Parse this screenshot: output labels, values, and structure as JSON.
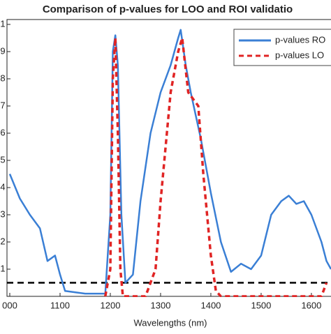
{
  "chart_data": {
    "type": "line",
    "title": "Comparison of p-values for LOO and ROI validatio",
    "xlabel": "Wavelengths (nm)",
    "xlim": [
      1000,
      1639
    ],
    "ylim": [
      0,
      1
    ],
    "xticks": [
      {
        "value": 1000,
        "label": "000"
      },
      1100,
      1200,
      1300,
      1400,
      1500,
      1600
    ],
    "yticks": [
      {
        "value": 0.1,
        "label": "1"
      },
      {
        "value": 0.2,
        "label": "2"
      },
      {
        "value": 0.3,
        "label": "3"
      },
      {
        "value": 0.4,
        "label": "4"
      },
      {
        "value": 0.5,
        "label": "5"
      },
      {
        "value": 0.6,
        "label": "6"
      },
      {
        "value": 0.7,
        "label": "7"
      },
      {
        "value": 0.8,
        "label": "8"
      },
      {
        "value": 0.9,
        "label": "9"
      },
      1
    ],
    "threshold": 0.05,
    "threshold_color": "#000000",
    "legend": "upper right",
    "series": [
      {
        "name": "p-values RO",
        "color": "#3a7fd5",
        "dashed": false,
        "x": [
          1000,
          1020,
          1040,
          1060,
          1075,
          1090,
          1100,
          1110,
          1150,
          1190,
          1200,
          1205,
          1210,
          1215,
          1222,
          1230,
          1245,
          1260,
          1280,
          1300,
          1320,
          1335,
          1340,
          1350,
          1360,
          1380,
          1400,
          1420,
          1440,
          1460,
          1480,
          1500,
          1520,
          1540,
          1555,
          1570,
          1585,
          1600,
          1620,
          1630,
          1639
        ],
        "values": [
          0.45,
          0.36,
          0.3,
          0.25,
          0.13,
          0.15,
          0.08,
          0.02,
          0.01,
          0.01,
          0.3,
          0.9,
          0.96,
          0.85,
          0.3,
          0.05,
          0.08,
          0.35,
          0.6,
          0.75,
          0.85,
          0.95,
          0.98,
          0.85,
          0.75,
          0.58,
          0.38,
          0.2,
          0.09,
          0.12,
          0.1,
          0.15,
          0.3,
          0.35,
          0.37,
          0.34,
          0.35,
          0.3,
          0.2,
          0.13,
          0.1
        ]
      },
      {
        "name": "p-values LO",
        "color": "#e02424",
        "dashed": true,
        "x": [
          1190,
          1200,
          1205,
          1210,
          1215,
          1220,
          1225,
          1270,
          1290,
          1300,
          1320,
          1335,
          1343,
          1355,
          1375,
          1385,
          1400,
          1410,
          1420,
          1620,
          1630
        ],
        "values": [
          0.0,
          0.1,
          0.8,
          0.95,
          0.6,
          0.1,
          0.0,
          0.0,
          0.1,
          0.35,
          0.75,
          0.9,
          0.95,
          0.75,
          0.7,
          0.45,
          0.15,
          0.02,
          0.0,
          0.0,
          0.05
        ]
      }
    ]
  }
}
